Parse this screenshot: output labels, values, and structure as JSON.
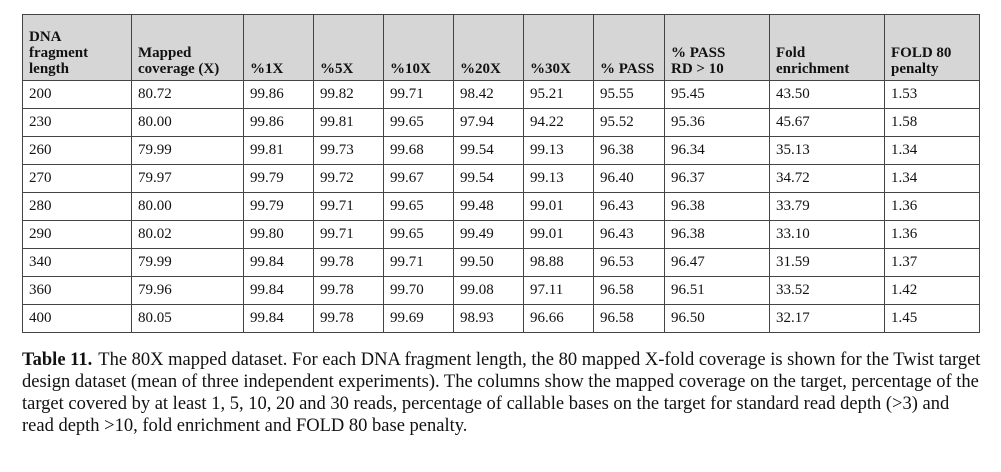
{
  "table": {
    "header": [
      [
        "DNA",
        "fragment",
        "length"
      ],
      [
        "Mapped",
        "coverage (X)"
      ],
      [
        "%1X"
      ],
      [
        "%5X"
      ],
      [
        "%10X"
      ],
      [
        "%20X"
      ],
      [
        "%30X"
      ],
      [
        "% PASS"
      ],
      [
        "% PASS",
        "RD > 10"
      ],
      [
        "Fold",
        "enrichment"
      ],
      [
        "FOLD 80",
        "penalty"
      ]
    ],
    "rows": [
      [
        "200",
        "80.72",
        "99.86",
        "99.82",
        "99.71",
        "98.42",
        "95.21",
        "95.55",
        "95.45",
        "43.50",
        "1.53"
      ],
      [
        "230",
        "80.00",
        "99.86",
        "99.81",
        "99.65",
        "97.94",
        "94.22",
        "95.52",
        "95.36",
        "45.67",
        "1.58"
      ],
      [
        "260",
        "79.99",
        "99.81",
        "99.73",
        "99.68",
        "99.54",
        "99.13",
        "96.38",
        "96.34",
        "35.13",
        "1.34"
      ],
      [
        "270",
        "79.97",
        "99.79",
        "99.72",
        "99.67",
        "99.54",
        "99.13",
        "96.40",
        "96.37",
        "34.72",
        "1.34"
      ],
      [
        "280",
        "80.00",
        "99.79",
        "99.71",
        "99.65",
        "99.48",
        "99.01",
        "96.43",
        "96.38",
        "33.79",
        "1.36"
      ],
      [
        "290",
        "80.02",
        "99.80",
        "99.71",
        "99.65",
        "99.49",
        "99.01",
        "96.43",
        "96.38",
        "33.10",
        "1.36"
      ],
      [
        "340",
        "79.99",
        "99.84",
        "99.78",
        "99.71",
        "99.50",
        "98.88",
        "96.53",
        "96.47",
        "31.59",
        "1.37"
      ],
      [
        "360",
        "79.96",
        "99.84",
        "99.78",
        "99.70",
        "99.08",
        "97.11",
        "96.58",
        "96.51",
        "33.52",
        "1.42"
      ],
      [
        "400",
        "80.05",
        "99.84",
        "99.78",
        "99.69",
        "98.93",
        "96.66",
        "96.58",
        "96.50",
        "32.17",
        "1.45"
      ]
    ]
  },
  "caption": {
    "label": "Table 11.",
    "text": "The 80X mapped dataset. For each DNA fragment length, the 80 mapped X-fold coverage is shown for the Twist target design dataset (mean of three independent experiments). The columns show the mapped coverage on the target, percentage of the target covered by at least 1, 5, 10, 20 and 30 reads, percentage of callable bases on the target for standard read depth (>3) and read depth >10, fold enrichment and FOLD 80 base penalty."
  }
}
